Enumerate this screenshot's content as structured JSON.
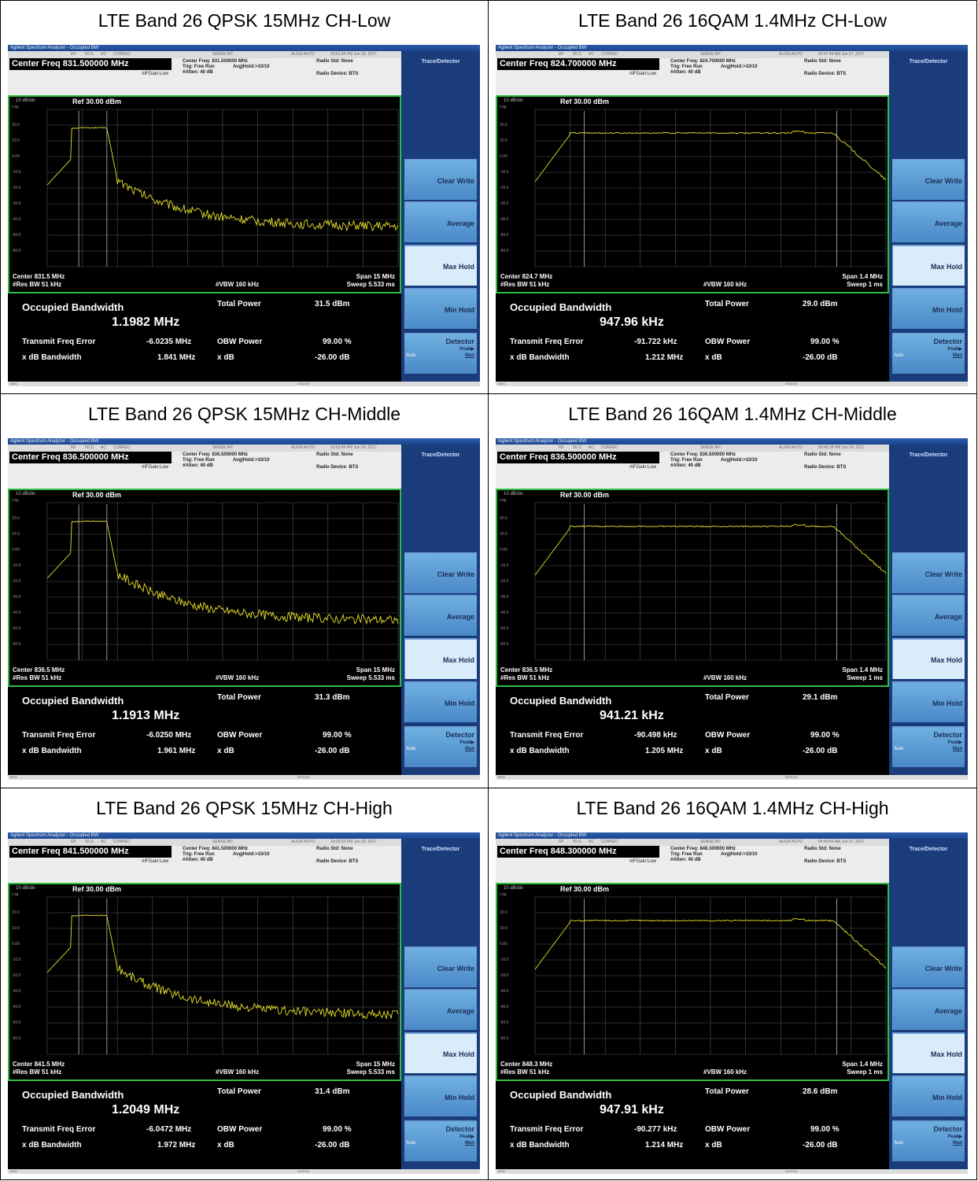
{
  "common": {
    "app_title": "Agilent Spectrum Analyzer - Occupied BW",
    "rf": "RF",
    "ohm": "50 Ω",
    "ac": "AC",
    "correc": "CORREC",
    "sense": "SENSE:INT",
    "align": "ALIGN AUTO",
    "trig": "Trig: Free Run",
    "avg": "Avg|Hold:>10/10",
    "atten": "#Atten: 40 dB",
    "ifgain": "#IFGain:Low",
    "radio_std": "Radio Std: None",
    "radio_device": "Radio Device: BTS",
    "scale": "10 dB/div",
    "log": "Log",
    "ref": "Ref 30.00 dBm",
    "y_ticks": [
      "20.0",
      "10.0",
      "0.00",
      "-10.0",
      "-20.0",
      "-30.0",
      "-40.0",
      "-50.0",
      "-60.0"
    ],
    "res_bw": "#Res BW  51 kHz",
    "vbw": "#VBW  160 kHz",
    "lbl_obw": "Occupied Bandwidth",
    "lbl_total_power": "Total Power",
    "lbl_tfe": "Transmit Freq Error",
    "lbl_obw_power": "OBW Power",
    "lbl_xdb_bw": "x dB Bandwidth",
    "lbl_xdb": "x dB",
    "obw_power": "99.00 %",
    "xdb": "-26.00 dB",
    "panel_title": "Trace/Detector",
    "softkeys": [
      "Clear Write",
      "Average",
      "Max Hold",
      "Min Hold"
    ],
    "detector": "Detector",
    "peak": "Peak▶",
    "auto": "Auto",
    "man": "Man",
    "msg": "MSG",
    "status": "STATUS"
  },
  "panels": [
    {
      "title": "LTE Band 26 QPSK 15MHz CH-Low",
      "center_freq": "Center Freq 831.500000 MHz",
      "center_freq_small": "Center Freq: 831.500000 MHz",
      "timestamp": "10:01:44 PM Jun 29, 2017",
      "center": "Center  831.5 MHz",
      "span": "Span 15 MHz",
      "sweep": "Sweep  5.533 ms",
      "obw": "1.1982 MHz",
      "total_power": "31.5 dBm",
      "tfe": "-6.0235 MHz",
      "xdb_bw": "1.841 MHz",
      "kind": "narrow"
    },
    {
      "title": "LTE Band 26 16QAM 1.4MHz CH-Low",
      "center_freq": "Center Freq 824.700000 MHz",
      "center_freq_small": "Center Freq: 824.700000 MHz",
      "timestamp": "04:47:44 AM Jun 27, 2017",
      "center": "Center  824.7 MHz",
      "span": "Span 1.4 MHz",
      "sweep": "Sweep  1 ms",
      "obw": "947.96 kHz",
      "total_power": "29.0 dBm",
      "tfe": "-91.722 kHz",
      "xdb_bw": "1.212 MHz",
      "kind": "wide"
    },
    {
      "title": "LTE Band 26 QPSK 15MHz CH-Middle",
      "center_freq": "Center Freq 836.500000 MHz",
      "center_freq_small": "Center Freq: 836.500000 MHz",
      "timestamp": "10:02:49 PM Jun 29, 2017",
      "center": "Center  836.5 MHz",
      "span": "Span 15 MHz",
      "sweep": "Sweep  5.533 ms",
      "obw": "1.1913 MHz",
      "total_power": "31.3 dBm",
      "tfe": "-6.0250 MHz",
      "xdb_bw": "1.961 MHz",
      "kind": "narrow"
    },
    {
      "title": "LTE Band 26 16QAM 1.4MHz CH-Middle",
      "center_freq": "Center Freq 836.500000 MHz",
      "center_freq_small": "Center Freq: 836.500000 MHz",
      "timestamp": "09:45:28 PM Jun 29, 2017",
      "center": "Center  836.5 MHz",
      "span": "Span 1.4 MHz",
      "sweep": "Sweep  1 ms",
      "obw": "941.21 kHz",
      "total_power": "29.1 dBm",
      "tfe": "-90.498 kHz",
      "xdb_bw": "1.205 MHz",
      "kind": "wide"
    },
    {
      "title": "LTE Band 26 QPSK 15MHz CH-High",
      "center_freq": "Center Freq 841.500000 MHz",
      "center_freq_small": "Center Freq: 841.500000 MHz",
      "timestamp": "10:03:53 PM Jun 29, 2017",
      "center": "Center  841.5 MHz",
      "span": "Span 15 MHz",
      "sweep": "Sweep  5.533 ms",
      "obw": "1.2049 MHz",
      "total_power": "31.4 dBm",
      "tfe": "-6.0472 MHz",
      "xdb_bw": "1.972 MHz",
      "kind": "narrow"
    },
    {
      "title": "LTE Band 26 16QAM 1.4MHz CH-High",
      "center_freq": "Center Freq 848.300000 MHz",
      "center_freq_small": "Center Freq: 848.300000 MHz",
      "timestamp": "04:49:54 AM Jun 27, 2017",
      "center": "Center  848.3 MHz",
      "span": "Span 1.4 MHz",
      "sweep": "Sweep  1 ms",
      "obw": "947.91 kHz",
      "total_power": "28.6 dBm",
      "tfe": "-90.277 kHz",
      "xdb_bw": "1.214 MHz",
      "kind": "wide"
    }
  ]
}
